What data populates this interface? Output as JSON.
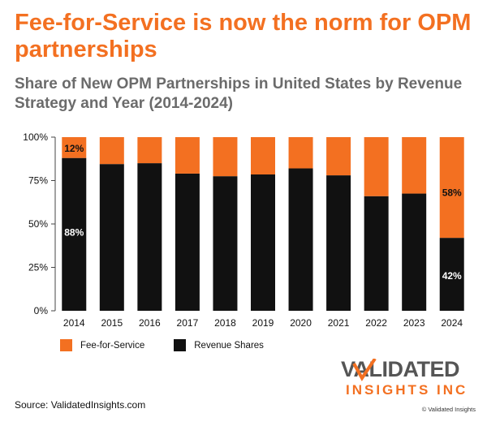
{
  "headline": "Fee-for-Service is now the norm for OPM partnerships",
  "subtitle": "Share of New OPM Partnerships in United States by Revenue Strategy and Year (2014-2024)",
  "chart_data": {
    "type": "bar",
    "stacked": true,
    "categories": [
      "2014",
      "2015",
      "2016",
      "2017",
      "2018",
      "2019",
      "2020",
      "2021",
      "2022",
      "2023",
      "2024"
    ],
    "series": [
      {
        "name": "Revenue Shares",
        "color": "#111111",
        "values": [
          88,
          84.5,
          85,
          79,
          77.5,
          78.5,
          82,
          78,
          66,
          67.5,
          42
        ]
      },
      {
        "name": "Fee-for-Service",
        "color": "#f37021",
        "values": [
          12,
          15.5,
          15,
          21,
          22.5,
          21.5,
          18,
          22,
          34,
          32.5,
          58
        ]
      }
    ],
    "data_labels": [
      {
        "category": "2014",
        "series": "Fee-for-Service",
        "text": "12%"
      },
      {
        "category": "2014",
        "series": "Revenue Shares",
        "text": "88%"
      },
      {
        "category": "2024",
        "series": "Fee-for-Service",
        "text": "58%"
      },
      {
        "category": "2024",
        "series": "Revenue Shares",
        "text": "42%"
      }
    ],
    "y_ticks": [
      "0%",
      "25%",
      "50%",
      "75%",
      "100%"
    ],
    "ylim": [
      0,
      100
    ],
    "grid": false,
    "legend_position": "bottom-left"
  },
  "legend": {
    "fee": "Fee-for-Service",
    "rev": "Revenue Shares"
  },
  "source": "Source: ValidatedInsights.com",
  "logo": {
    "line1": "VALIDATED",
    "line2": "INSIGHTS INC"
  },
  "copyright": "© Validated Insights",
  "colors": {
    "accent": "#f37021",
    "dark": "#111111",
    "subtitle": "#6b6b6b"
  }
}
